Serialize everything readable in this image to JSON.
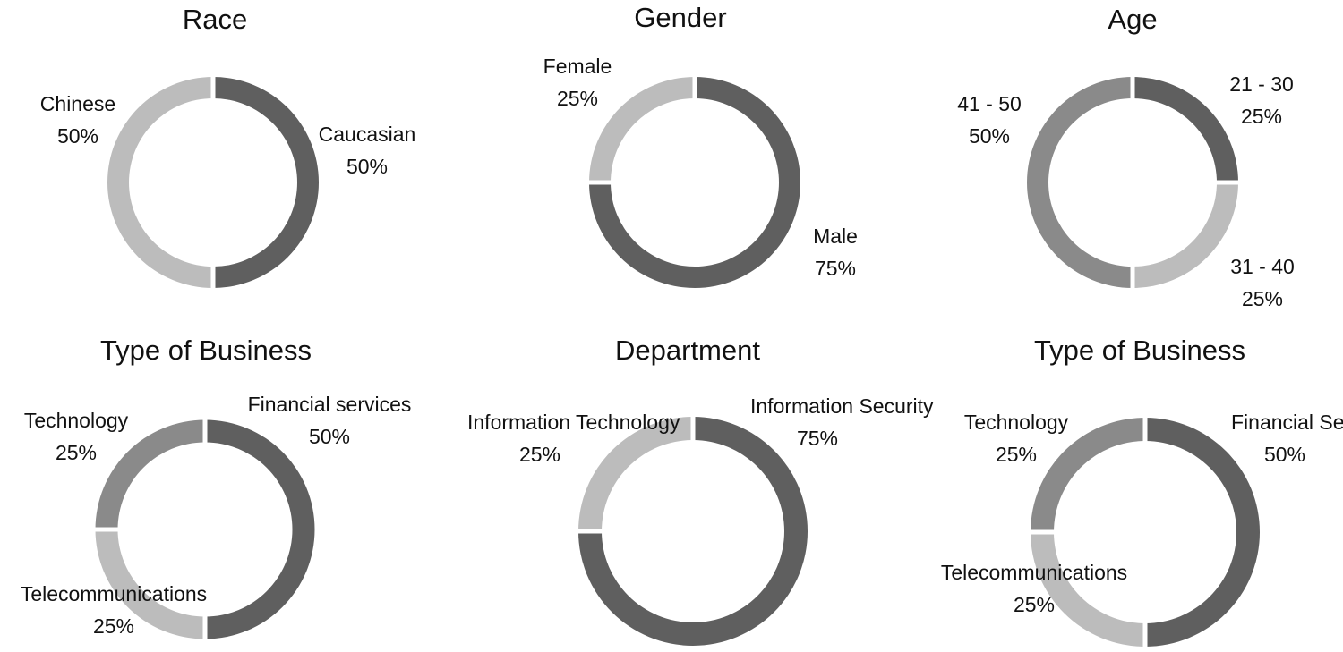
{
  "colors": {
    "dark": "#5f5f5f",
    "mid": "#8a8a8a",
    "light": "#bcbcbc",
    "gap": "#ffffff"
  },
  "chart_data": [
    {
      "type": "pie",
      "donut": true,
      "title": "Race",
      "slices": [
        {
          "name": "Caucasian",
          "value": 50,
          "value_label": "50%",
          "color": "#5f5f5f"
        },
        {
          "name": "Chinese",
          "value": 50,
          "value_label": "50%",
          "color": "#bcbcbc"
        }
      ]
    },
    {
      "type": "pie",
      "donut": true,
      "title": "Gender",
      "slices": [
        {
          "name": "Male",
          "value": 75,
          "value_label": "75%",
          "color": "#5f5f5f"
        },
        {
          "name": "Female",
          "value": 25,
          "value_label": "25%",
          "color": "#bcbcbc"
        }
      ]
    },
    {
      "type": "pie",
      "donut": true,
      "title": "Age",
      "slices": [
        {
          "name": "21 - 30",
          "value": 25,
          "value_label": "25%",
          "color": "#5f5f5f"
        },
        {
          "name": "31 - 40",
          "value": 25,
          "value_label": "25%",
          "color": "#bcbcbc"
        },
        {
          "name": "41 - 50",
          "value": 50,
          "value_label": "50%",
          "color": "#8a8a8a"
        }
      ]
    },
    {
      "type": "pie",
      "donut": true,
      "title": "Type of Business",
      "slices": [
        {
          "name": "Financial services",
          "value": 50,
          "value_label": "50%",
          "color": "#5f5f5f"
        },
        {
          "name": "Telecommunications",
          "value": 25,
          "value_label": "25%",
          "color": "#bcbcbc"
        },
        {
          "name": "Technology",
          "value": 25,
          "value_label": "25%",
          "color": "#8a8a8a"
        }
      ]
    },
    {
      "type": "pie",
      "donut": true,
      "title": "Department",
      "slices": [
        {
          "name": "Information Security",
          "value": 75,
          "value_label": "75%",
          "color": "#5f5f5f"
        },
        {
          "name": "Information Technology",
          "value": 25,
          "value_label": "25%",
          "color": "#bcbcbc"
        }
      ]
    },
    {
      "type": "pie",
      "donut": true,
      "title": "Type of Business",
      "slices": [
        {
          "name": "Financial Services",
          "value": 50,
          "value_label": "50%",
          "color": "#5f5f5f"
        },
        {
          "name": "Telecommunications",
          "value": 25,
          "value_label": "25%",
          "color": "#bcbcbc"
        },
        {
          "name": "Technology",
          "value": 25,
          "value_label": "25%",
          "color": "#8a8a8a"
        }
      ]
    }
  ]
}
